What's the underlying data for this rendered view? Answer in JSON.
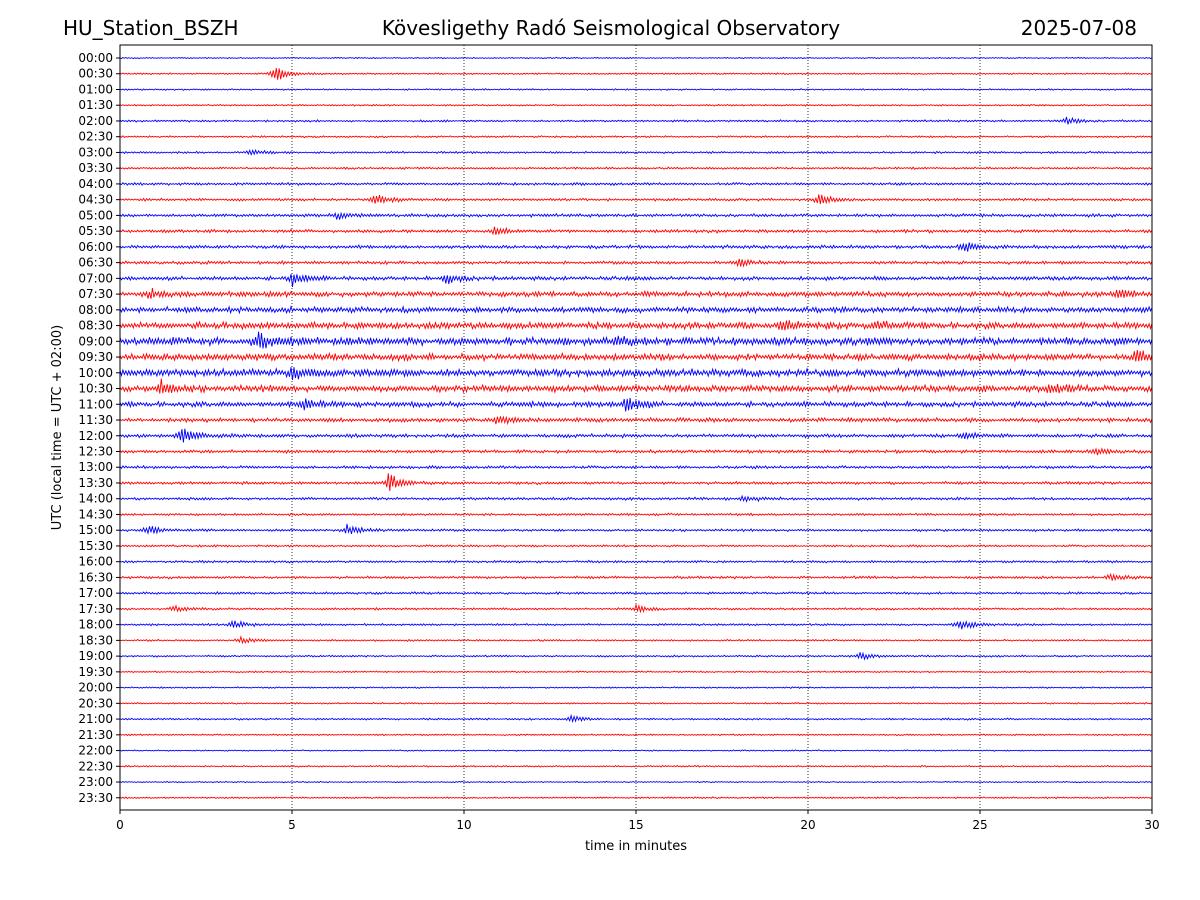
{
  "header": {
    "station": "HU_Station_BSZH",
    "observatory": "Kövesligethy Radó Seismological Observatory",
    "date": "2025-07-08"
  },
  "chart_data": {
    "type": "line",
    "title": "Kövesligethy Radó Seismological Observatory",
    "xlabel": "time in minutes",
    "ylabel": "UTC (local time = UTC + 02:00)",
    "xlim": [
      0,
      30
    ],
    "x_ticks": [
      0,
      5,
      10,
      15,
      20,
      25,
      30
    ],
    "grid": "vertical dotted lines at x ticks",
    "row_labels": [
      "00:00",
      "00:30",
      "01:00",
      "01:30",
      "02:00",
      "02:30",
      "03:00",
      "03:30",
      "04:00",
      "04:30",
      "05:00",
      "05:30",
      "06:00",
      "06:30",
      "07:00",
      "07:30",
      "08:00",
      "08:30",
      "09:00",
      "09:30",
      "10:00",
      "10:30",
      "11:00",
      "11:30",
      "12:00",
      "12:30",
      "13:00",
      "13:30",
      "14:00",
      "14:30",
      "15:00",
      "15:30",
      "16:00",
      "16:30",
      "17:00",
      "17:30",
      "18:00",
      "18:30",
      "19:00",
      "19:30",
      "20:00",
      "20:30",
      "21:00",
      "21:30",
      "22:00",
      "22:30",
      "23:00",
      "23:30"
    ],
    "colors": {
      "even_rows": "#0000ff",
      "odd_rows": "#ff0000"
    },
    "row_noise_level": [
      0.5,
      0.6,
      0.6,
      0.6,
      0.8,
      0.7,
      0.8,
      0.8,
      1.0,
      1.0,
      1.2,
      1.2,
      1.3,
      1.2,
      1.5,
      2.0,
      2.2,
      2.5,
      3.0,
      2.5,
      2.8,
      2.5,
      2.0,
      1.6,
      1.4,
      1.2,
      1.1,
      1.1,
      1.0,
      0.9,
      0.9,
      0.8,
      0.9,
      1.0,
      0.9,
      0.8,
      0.8,
      0.7,
      0.7,
      0.6,
      0.6,
      0.6,
      0.7,
      0.6,
      0.5,
      0.6,
      0.5,
      0.6
    ],
    "events": [
      {
        "row": 1,
        "minute": 4.5,
        "amplitude": 10
      },
      {
        "row": 4,
        "minute": 27.5,
        "amplitude": 4
      },
      {
        "row": 6,
        "minute": 3.8,
        "amplitude": 4
      },
      {
        "row": 9,
        "minute": 7.4,
        "amplitude": 7
      },
      {
        "row": 9,
        "minute": 20.3,
        "amplitude": 6
      },
      {
        "row": 10,
        "minute": 6.3,
        "amplitude": 4
      },
      {
        "row": 11,
        "minute": 10.9,
        "amplitude": 5
      },
      {
        "row": 12,
        "minute": 24.5,
        "amplitude": 5
      },
      {
        "row": 13,
        "minute": 18.0,
        "amplitude": 5
      },
      {
        "row": 14,
        "minute": 5.0,
        "amplitude": 8
      },
      {
        "row": 14,
        "minute": 9.5,
        "amplitude": 6
      },
      {
        "row": 15,
        "minute": 0.8,
        "amplitude": 5
      },
      {
        "row": 15,
        "minute": 29.0,
        "amplitude": 5
      },
      {
        "row": 17,
        "minute": 19.2,
        "amplitude": 6
      },
      {
        "row": 17,
        "minute": 22.0,
        "amplitude": 5
      },
      {
        "row": 18,
        "minute": 4.0,
        "amplitude": 9
      },
      {
        "row": 18,
        "minute": 14.5,
        "amplitude": 5
      },
      {
        "row": 19,
        "minute": 29.5,
        "amplitude": 7
      },
      {
        "row": 20,
        "minute": 5.0,
        "amplitude": 8
      },
      {
        "row": 21,
        "minute": 1.2,
        "amplitude": 8
      },
      {
        "row": 21,
        "minute": 27.0,
        "amplitude": 5
      },
      {
        "row": 22,
        "minute": 5.3,
        "amplitude": 7
      },
      {
        "row": 22,
        "minute": 14.7,
        "amplitude": 9
      },
      {
        "row": 23,
        "minute": 11.0,
        "amplitude": 5
      },
      {
        "row": 24,
        "minute": 1.8,
        "amplitude": 9
      },
      {
        "row": 24,
        "minute": 24.5,
        "amplitude": 4
      },
      {
        "row": 25,
        "minute": 28.3,
        "amplitude": 4
      },
      {
        "row": 27,
        "minute": 7.8,
        "amplitude": 10
      },
      {
        "row": 28,
        "minute": 18.1,
        "amplitude": 4
      },
      {
        "row": 30,
        "minute": 0.8,
        "amplitude": 6
      },
      {
        "row": 30,
        "minute": 6.6,
        "amplitude": 6
      },
      {
        "row": 33,
        "minute": 28.8,
        "amplitude": 4
      },
      {
        "row": 35,
        "minute": 1.6,
        "amplitude": 4
      },
      {
        "row": 35,
        "minute": 15.0,
        "amplitude": 4
      },
      {
        "row": 36,
        "minute": 3.3,
        "amplitude": 5
      },
      {
        "row": 36,
        "minute": 24.4,
        "amplitude": 7
      },
      {
        "row": 37,
        "minute": 3.5,
        "amplitude": 4
      },
      {
        "row": 38,
        "minute": 21.5,
        "amplitude": 4
      },
      {
        "row": 42,
        "minute": 13.1,
        "amplitude": 4
      }
    ]
  }
}
